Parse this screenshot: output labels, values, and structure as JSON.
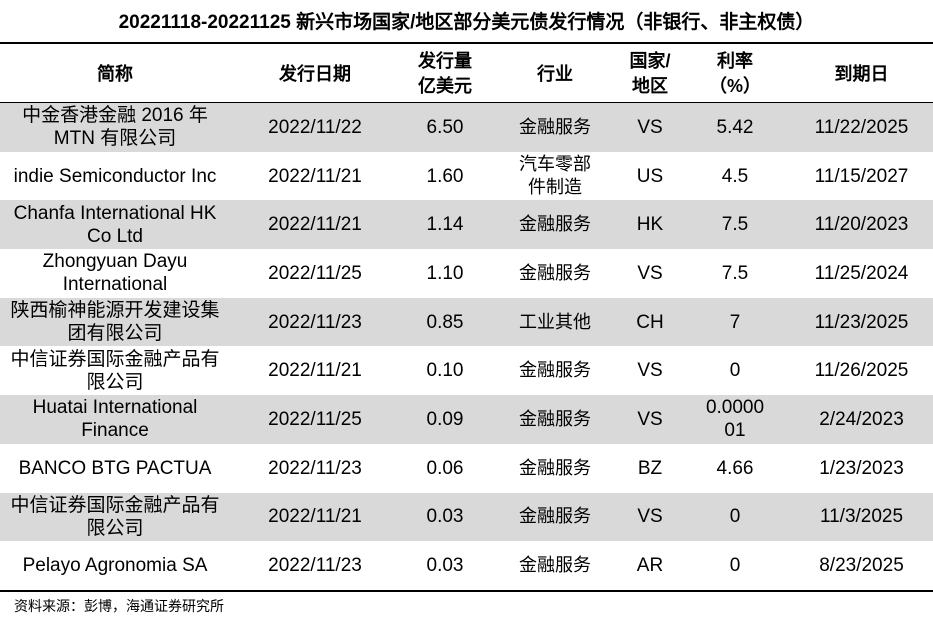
{
  "title": "20221118-20221125 新兴市场国家/地区部分美元债发行情况（非银行、非主权债）",
  "table": {
    "header": [
      [
        "简称"
      ],
      [
        "发行日期"
      ],
      [
        "发行量",
        "亿美元"
      ],
      [
        "行业"
      ],
      [
        "国家/",
        "地区"
      ],
      [
        "利率",
        "（%）"
      ],
      [
        "到期日"
      ]
    ],
    "rows": [
      [
        "中金香港金融 2016 年 MTN 有限公司",
        "2022/11/22",
        "6.50",
        "金融服务",
        "VS",
        "5.42",
        "11/22/2025"
      ],
      [
        "indie Semiconductor Inc",
        "2022/11/21",
        "1.60",
        "汽车零部件制造",
        "US",
        "4.5",
        "11/15/2027"
      ],
      [
        "Chanfa International HK Co Ltd",
        "2022/11/21",
        "1.14",
        "金融服务",
        "HK",
        "7.5",
        "11/20/2023"
      ],
      [
        "Zhongyuan Dayu International",
        "2022/11/25",
        "1.10",
        "金融服务",
        "VS",
        "7.5",
        "11/25/2024"
      ],
      [
        "陕西榆神能源开发建设集团有限公司",
        "2022/11/23",
        "0.85",
        "工业其他",
        "CH",
        "7",
        "11/23/2025"
      ],
      [
        "中信证券国际金融产品有限公司",
        "2022/11/21",
        "0.10",
        "金融服务",
        "VS",
        "0",
        "11/26/2025"
      ],
      [
        "Huatai International Finance",
        "2022/11/25",
        "0.09",
        "金融服务",
        "VS",
        "0.000001",
        "2/24/2023"
      ],
      [
        "BANCO BTG PACTUA",
        "2022/11/23",
        "0.06",
        "金融服务",
        "BZ",
        "4.66",
        "1/23/2023"
      ],
      [
        "中信证券国际金融产品有限公司",
        "2022/11/21",
        "0.03",
        "金融服务",
        "VS",
        "0",
        "11/3/2025"
      ],
      [
        "Pelayo Agronomia SA",
        "2022/11/23",
        "0.03",
        "金融服务",
        "AR",
        "0",
        "8/23/2025"
      ]
    ]
  },
  "source": "资料来源：彭博，海通证券研究所"
}
